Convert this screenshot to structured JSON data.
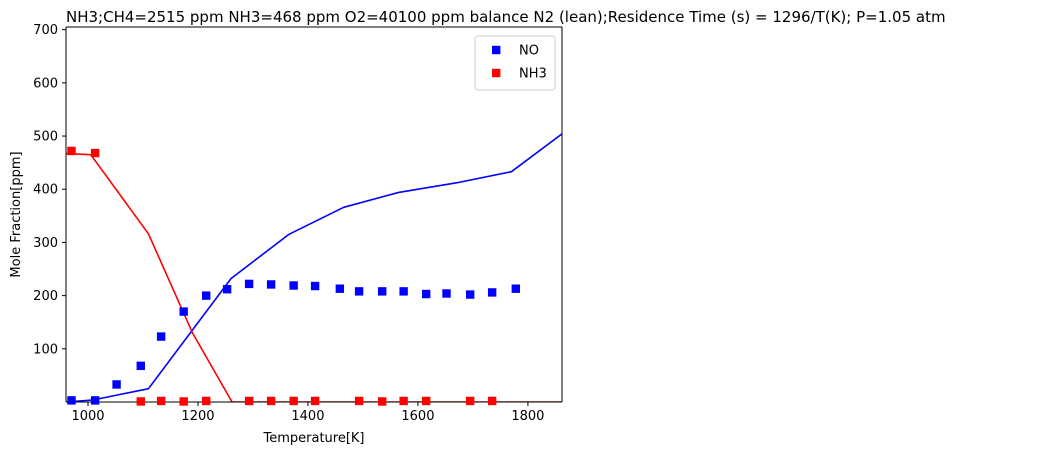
{
  "chart_data": {
    "type": "line",
    "title": "NH3;CH4=2515 ppm  NH3=468 ppm O2=40100 ppm balance N2 (lean);Residence Time (s) = 1296/T(K); P=1.05 atm",
    "xlabel": "Temperature[K]",
    "ylabel": "Mole Fraction[ppm]",
    "xlim": [
      960,
      1862
    ],
    "ylim": [
      0,
      705
    ],
    "xticks": [
      1000,
      1200,
      1400,
      1600,
      1800
    ],
    "yticks": [
      100,
      200,
      300,
      400,
      500,
      600,
      700
    ],
    "legend_position": "top-right",
    "grid": false,
    "series": [
      {
        "name": "NO",
        "kind": "scatter",
        "marker": "square",
        "color": "#0000ff",
        "x": [
          970,
          1013,
          1052,
          1096,
          1133,
          1174,
          1215,
          1253,
          1293,
          1333,
          1374,
          1413,
          1458,
          1493,
          1535,
          1574,
          1615,
          1652,
          1695,
          1735,
          1778
        ],
        "y": [
          3,
          3,
          33,
          68,
          123,
          170,
          200,
          212,
          222,
          221,
          219,
          218,
          213,
          208,
          208,
          208,
          203,
          204,
          202,
          206,
          213
        ]
      },
      {
        "name": "NH3",
        "kind": "scatter",
        "marker": "square",
        "color": "#ff0000",
        "x": [
          970,
          1013,
          1096,
          1133,
          1174,
          1215,
          1293,
          1333,
          1374,
          1413,
          1493,
          1535,
          1574,
          1615,
          1695,
          1735
        ],
        "y": [
          472,
          468,
          1,
          2,
          1,
          2,
          2,
          2,
          2,
          2,
          2,
          1,
          2,
          2,
          2,
          2
        ]
      },
      {
        "kind": "line",
        "color": "#0000ff",
        "x": [
          960,
          1010,
          1110,
          1260,
          1365,
          1465,
          1565,
          1670,
          1770,
          1862
        ],
        "y": [
          0,
          4,
          25,
          232,
          315,
          366,
          394,
          412,
          433,
          504
        ]
      },
      {
        "kind": "line",
        "color": "#ff0000",
        "x": [
          960,
          1005,
          1110,
          1190,
          1262,
          1300,
          1862
        ],
        "y": [
          467,
          465,
          316,
          130,
          0,
          0,
          0
        ]
      }
    ]
  }
}
